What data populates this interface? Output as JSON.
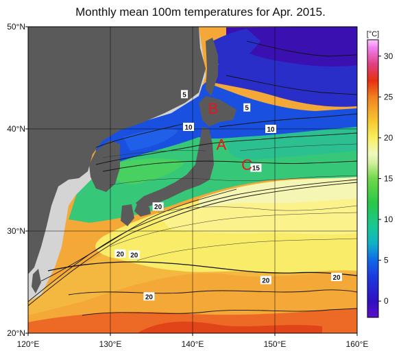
{
  "title": "Monthly mean 100m temperatures for Apr. 2015.",
  "map": {
    "lon_range": [
      120,
      160
    ],
    "lat_range": [
      20,
      50
    ],
    "lon_ticks": [
      {
        "value": 120,
        "label": "120°E"
      },
      {
        "value": 130,
        "label": "130°E"
      },
      {
        "value": 140,
        "label": "140°E"
      },
      {
        "value": 150,
        "label": "150°E"
      },
      {
        "value": 160,
        "label": "160°E"
      }
    ],
    "lat_ticks": [
      {
        "value": 20,
        "label": "20°N"
      },
      {
        "value": 30,
        "label": "30°N"
      },
      {
        "value": 40,
        "label": "40°N"
      },
      {
        "value": 50,
        "label": "50°N"
      }
    ],
    "grid": true,
    "colors": {
      "land": "#5a5a5a",
      "no_data": "#d4d4d4",
      "warm": "#f3a838",
      "yellow": "#fbef70",
      "green": "#38c878",
      "blue": "#1a40d8",
      "cold": "#3a10b0"
    }
  },
  "contour_labels": [
    {
      "text": "5",
      "lon": 139.0,
      "lat": 43.4
    },
    {
      "text": "5",
      "lon": 146.6,
      "lat": 42.1
    },
    {
      "text": "10",
      "lon": 139.5,
      "lat": 40.2
    },
    {
      "text": "10",
      "lon": 149.5,
      "lat": 40.0
    },
    {
      "text": "15",
      "lon": 147.7,
      "lat": 36.2
    },
    {
      "text": "20",
      "lon": 135.8,
      "lat": 32.4
    },
    {
      "text": "20",
      "lon": 131.2,
      "lat": 27.8
    },
    {
      "text": "20",
      "lon": 132.9,
      "lat": 27.7
    },
    {
      "text": "20",
      "lon": 134.7,
      "lat": 23.6
    },
    {
      "text": "20",
      "lon": 148.9,
      "lat": 25.2
    },
    {
      "text": "20",
      "lon": 157.5,
      "lat": 25.5
    }
  ],
  "point_markers": [
    {
      "text": "A",
      "lon": 143.5,
      "lat": 38.5
    },
    {
      "text": "B",
      "lon": 142.5,
      "lat": 42.0
    },
    {
      "text": "C",
      "lon": 146.6,
      "lat": 36.5
    }
  ],
  "colorbar": {
    "unit": "[°C]",
    "range": [
      -2,
      32
    ],
    "ticks": [
      0,
      5,
      10,
      15,
      20,
      25,
      30
    ],
    "stops": [
      {
        "value": -2,
        "color": "#5a10c8"
      },
      {
        "value": 0,
        "color": "#3010c0"
      },
      {
        "value": 3,
        "color": "#1a3ae0"
      },
      {
        "value": 5,
        "color": "#1068e8"
      },
      {
        "value": 7,
        "color": "#10b0c8"
      },
      {
        "value": 9,
        "color": "#18c898"
      },
      {
        "value": 12,
        "color": "#28c848"
      },
      {
        "value": 15,
        "color": "#70d848"
      },
      {
        "value": 17,
        "color": "#d4f0a0"
      },
      {
        "value": 18,
        "color": "#f0f8c0"
      },
      {
        "value": 20,
        "color": "#f8f060"
      },
      {
        "value": 22,
        "color": "#f8c830"
      },
      {
        "value": 25,
        "color": "#f08020"
      },
      {
        "value": 27,
        "color": "#e83010"
      },
      {
        "value": 29,
        "color": "#e04080"
      },
      {
        "value": 31,
        "color": "#f080f0"
      },
      {
        "value": 32,
        "color": "#fcc8fc"
      }
    ]
  }
}
